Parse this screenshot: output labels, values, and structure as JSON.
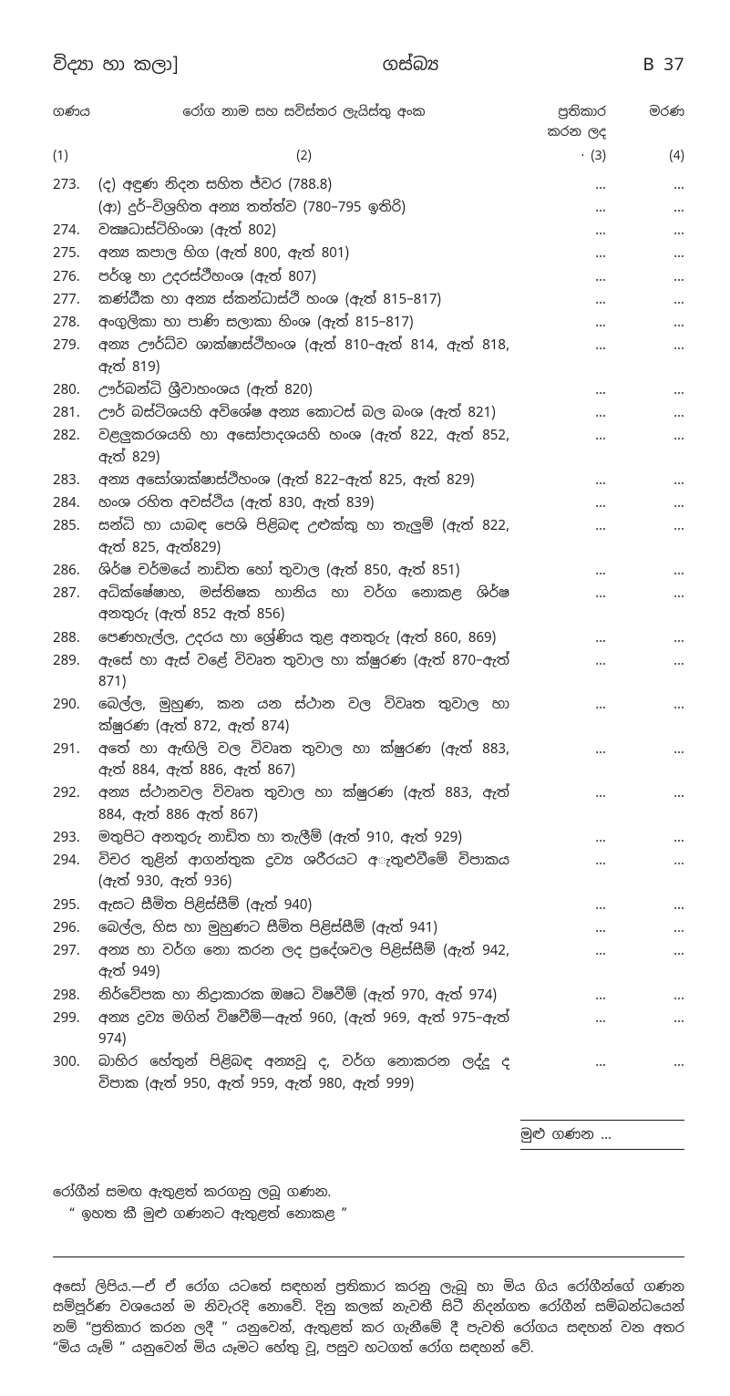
{
  "header": {
    "left": "විද්‍යා හා කලා]",
    "center": "ගස්බ්‍ය",
    "right": "B 37"
  },
  "columns": {
    "c1_label": "ගණය",
    "c2_label": "රෝග නාම සහ සවිස්තර ලැයිස්තු අංක",
    "c3_label_top": "ප්‍රතිකාර",
    "c3_label_bot": "කරන ලද",
    "c4_label": "මරණ",
    "sub": {
      "c1": "(1)",
      "c2": "(2)",
      "c3": "· (3)",
      "c4": "(4)"
    }
  },
  "entries": [
    {
      "n": "273.",
      "d": "(ද) අඳුණ නිදන සහිත ජ්වර (788.8)"
    },
    {
      "n": "",
      "d": "(ආ) දුර්–විශ්‍රහිත අන්‍ය තත්ත්ව (780–795 ඉතිරි)"
    },
    {
      "n": "274.",
      "d": "වක්‍ෂධාස්ටිහිංශා (ඇත් 802)"
    },
    {
      "n": "275.",
      "d": "අන්‍ය කපාල හිග (ඇත් 800, ඇත් 801)"
    },
    {
      "n": "276.",
      "d": "පර්ශු හා උදරස්ථීහංශ (ඇත් 807)"
    },
    {
      "n": "277.",
      "d": "කණ්ඨීක හා අන්‍ය ස්කන්ධාස්ථි හංශ (ඇත් 815–817)"
    },
    {
      "n": "278.",
      "d": "අංගුලිකා හා පාණි සලාකා හිංශ (ඇත් 815–817)"
    },
    {
      "n": "279.",
      "d": "අන්‍ය ඌර්ධ්ව ශාක්ෂාස්ථිහංශ (ඇත් 810–ඇත් 814, ඇත් 818, ඇත් 819)"
    },
    {
      "n": "280.",
      "d": "ඌර්බන්ධි ශ්‍රීවාහංශය (ඇත් 820)"
    },
    {
      "n": "281.",
      "d": "ඌර් බස්ටිශයහි අවිශේෂ අන්‍ය කොටස් බල බංශ (ඇත් 821)"
    },
    {
      "n": "282.",
      "d": "වළලුකරශයහි හා අසෝපාදශයහි හංශ (ඇත් 822, ඇත් 852, ඇත් 829)"
    },
    {
      "n": "283.",
      "d": "අන්‍ය අසෝශාක්ෂාස්ථිහංශ (ඇත් 822–ඇත් 825, ඇත් 829)"
    },
    {
      "n": "284.",
      "d": "හංශ රහිත අවස්ථිය (ඇත් 830, ඇත් 839)"
    },
    {
      "n": "285.",
      "d": "සන්ධි හා යාබඳ පෙශි පිළිබඳ උළුක්කු හා තැලුම් (ඇත් 822, ඇත් 825, ඇත්829)"
    },
    {
      "n": "286.",
      "d": "ශිර්ෂ චර්මයේ නාඩිත හෝ තුවාල (ඇත් 850, ඇත් 851)"
    },
    {
      "n": "287.",
      "d": "අධික්ෂේෂාහ, මස්තිෂක හානිය හා වර්ග නොකළ ශිර්ෂ අනතුරු (ඇත් 852 ඇත් 856)"
    },
    {
      "n": "288.",
      "d": "පෙණහැල්ල,   උදරය හා ශ්‍රේණිය තුළ අනතුරු (ඇත් 860, 869)"
    },
    {
      "n": "289.",
      "d": "ඇසේ හා ඇස් වළේ විවෘත තුවාල හා ක්ෂුරණ (ඇත් 870–ඇත් 871)"
    },
    {
      "n": "290.",
      "d": "බෙල්ල, මුහුණ, කන යන ස්ථාන වල විවෘත තුවාල හා ක්ෂුරණ (ඇත් 872, ඇත් 874)"
    },
    {
      "n": "291.",
      "d": "අතේ හා ඇඟිලි වල විවෘත තුවාල හා ක්ෂුරණ (ඇත් 883, ඇත් 884, ඇත් 886, ඇත් 867)"
    },
    {
      "n": "292.",
      "d": "අන්‍ය ස්ථානවල විවෘත තුවාල හා ක්ෂුරණ (ඇත් 883, ඇත් 884, ඇත් 886 ඇත් 867)"
    },
    {
      "n": "293.",
      "d": "මතුපිට අනතුරු නාඩිත හා තැලීම් (ඇත් 910, ඇත් 929)"
    },
    {
      "n": "294.",
      "d": "විචර තුළින් ආගන්තුක ද්‍රව්‍ය ශරීරයට අැතුළුවීමේ විපාකය (ඇත් 930, ඇත් 936)"
    },
    {
      "n": "295.",
      "d": "ඇසට සීමිත පිළිස්සීම් (ඇත් 940)"
    },
    {
      "n": "296.",
      "d": "බෙල්ල, හිස හා මුහුණට සීමිත පිළිස්සීම් (ඇත් 941)"
    },
    {
      "n": "297.",
      "d": "අන්‍ය හා වර්ග නො කරන ලද ප්‍රදේශවල පිළිස්සීම් (ඇත් 942, ඇත් 949)"
    },
    {
      "n": "298.",
      "d": "නිර්වේපක හා නිද්‍රාකාරක ඔෂධ විෂවීම් (ඇත් 970, ඇත් 974)"
    },
    {
      "n": "299.",
      "d": "අන්‍ය ද්‍රව්‍ය මගින් විෂවීම්—ඇත් 960, (ඇත් 969, ඇත් 975–ඇත් 974)"
    },
    {
      "n": "300.",
      "d": "බාහිර හේතුන් පිළිබඳ අන්‍යවූ ද, වර්ග නොකරන ලද්දූ ද විපාක (ඇත් 950, ඇත් 959, ඇත් 980, ඇත් 999)"
    }
  ],
  "total_label": "මුළු ගණන   …",
  "note": {
    "line1": "රෝගීන් සමඟ ඇතුළත් කරගනු ලබූ ගණන.",
    "line2": "“ ඉහත කී මුළු ගණනට ඇතුළත් නොකළ ”"
  },
  "footnote": "අසෝ ලිපිය.—ඒ ඒ රෝග යටතේ සඳහන් ප්‍රතිකාර කරනු ලැබූ හා මිය ගිය රෝගීන්ගේ ගණන සම්පූර්ණ වශයෙන් ම නිවැරදි නොවේ.  දිනු කලක් නැවතී සිටී නිදන්ගත රෝගීන් සම්බන්ධයෙන් නම් “ප්‍රතිකාර කරන ලදී ” යනුවෙන්, ඇතුළත් කර ගැනීමේ දී පැවති රෝගය සඳහන් වන අතර “මිය යෑම් ” යනුවෙන් මිය යෑමට හේතු වූ, පසුව හටගත් රෝග සඳහන් වේ."
}
